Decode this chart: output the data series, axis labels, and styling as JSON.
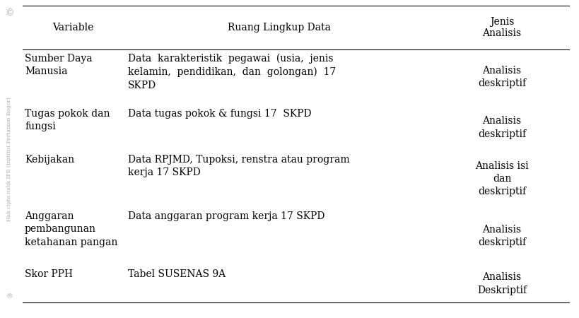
{
  "columns": [
    "Variable",
    "Ruang Lingkup Data",
    "Jenis\nAnalisis"
  ],
  "rows": [
    {
      "variable": "Sumber Daya\nManusia",
      "ruang_lingkup": "Data  karakteristik  pegawai  (usia,  jenis\nkelamin,  pendidikan,  dan  golongan)  17\nSKPD",
      "jenis_analisis": "Analisis\ndeskriptif"
    },
    {
      "variable": "Tugas pokok dan\nfungsi",
      "ruang_lingkup": "Data tugas pokok & fungsi 17  SKPD",
      "jenis_analisis": "Analisis\ndeskriptif"
    },
    {
      "variable": "Kebijakan",
      "ruang_lingkup": "Data RPJMD, Tupoksi, renstra atau program\nkerja 17 SKPD",
      "jenis_analisis": "Analisis isi\ndan\ndeskriptif"
    },
    {
      "variable": "Anggaran\npembangunan\nketahanan pangan",
      "ruang_lingkup": "Data anggaran program kerja 17 SKPD",
      "jenis_analisis": "Analisis\ndeskriptif"
    },
    {
      "variable": "Skor PPH",
      "ruang_lingkup": "Tabel SUSENAS 9A",
      "jenis_analisis": "Analisis\nDeskriptif"
    }
  ],
  "bg_color": "#ffffff",
  "text_color": "#000000",
  "line_color": "#000000",
  "watermark_text": "Hak cipta milik IPB (Institut Pertanian Bogor)",
  "font_size": 10,
  "header_font_size": 10
}
